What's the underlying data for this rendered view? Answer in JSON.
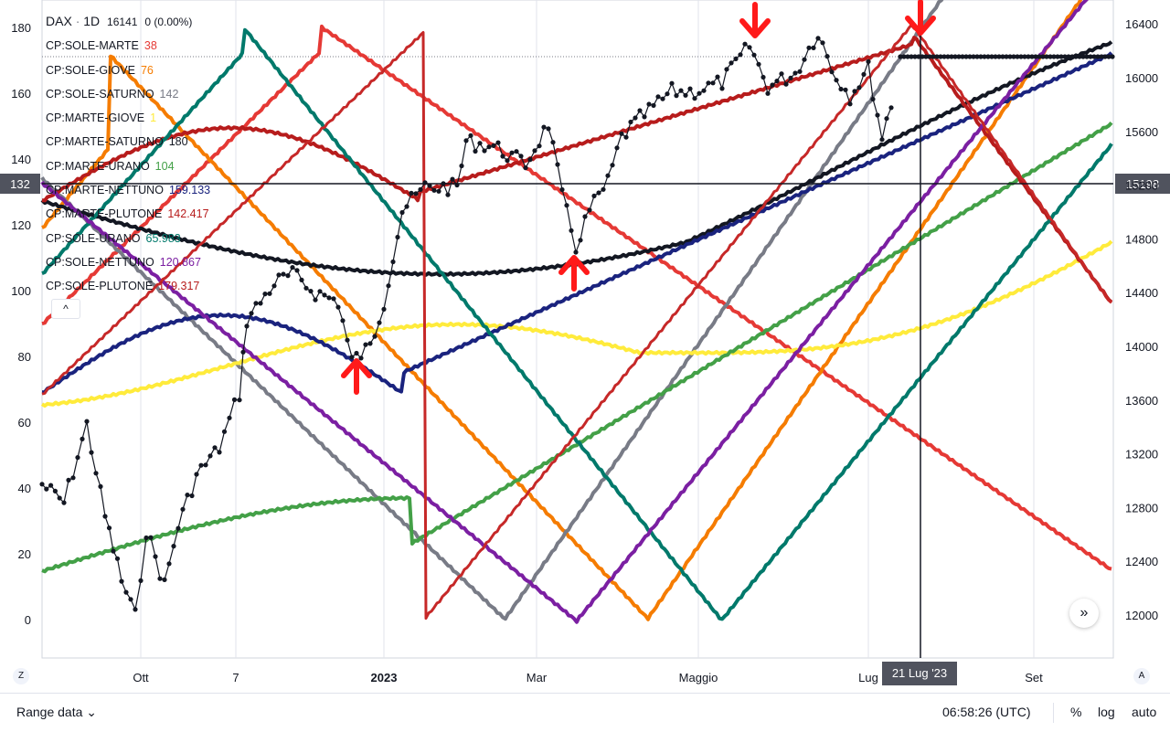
{
  "header": {
    "symbol": "DAX",
    "interval": "1D",
    "last_value": "16141",
    "change": "0 (0.00%)"
  },
  "legend": [
    {
      "name": "CP:SOLE-MARTE",
      "value": "38",
      "color": "#e53935"
    },
    {
      "name": "CP:SOLE-GIOVE",
      "value": "76",
      "color": "#f57c00"
    },
    {
      "name": "CP:SOLE-SATURNO",
      "value": "142",
      "color": "#787b86"
    },
    {
      "name": "CP:MARTE-GIOVE",
      "value": "1",
      "color": "#ffeb3b"
    },
    {
      "name": "CP:MARTE-SATURNO",
      "value": "180",
      "color": "#131722"
    },
    {
      "name": "CP:MARTE-URANO",
      "value": "104",
      "color": "#43a047"
    },
    {
      "name": "CP:MARTE-NETTUNO",
      "value": "159.133",
      "color": "#1a237e"
    },
    {
      "name": "CP:MARTE-PLUTONE",
      "value": "142.417",
      "color": "#b71c1c"
    },
    {
      "name": "CP:SOLE-URANO",
      "value": "65.983",
      "color": "#00796b"
    },
    {
      "name": "CP:SOLE-NETTUNO",
      "value": "120.867",
      "color": "#7b1fa2"
    },
    {
      "name": "CP:SOLE-PLUTONE",
      "value": "179.317",
      "color": "#b71c1c"
    }
  ],
  "collapse_label": "^",
  "bottom_bar": {
    "range_label": "Range data ⌄",
    "clock": "06:58:26 (UTC)",
    "percent": "%",
    "log": "log",
    "auto": "auto"
  },
  "corner_left": "Z",
  "corner_right": "A",
  "scroll_icon": "»",
  "crosshair": {
    "date_label": "21 Lug '23",
    "left_value": "132",
    "right_value": "15198"
  },
  "chart_data": {
    "type": "line",
    "left_axis": {
      "ticks": [
        0,
        20,
        40,
        60,
        80,
        100,
        120,
        140,
        160,
        180
      ]
    },
    "right_axis": {
      "ticks": [
        12000,
        12400,
        12800,
        13200,
        13600,
        14000,
        14400,
        14800,
        15200,
        15600,
        16000,
        16400
      ]
    },
    "x_ticks": [
      "Ott",
      "7",
      "2023",
      "Mar",
      "Maggio",
      "Lug",
      "Set"
    ],
    "price_series_name": "DAX",
    "signals": [
      {
        "type": "up",
        "date": "2022-12-07"
      },
      {
        "type": "up",
        "date": "2023-03-14"
      },
      {
        "type": "down",
        "date": "2023-05-29"
      },
      {
        "type": "down",
        "date": "2023-07-21"
      }
    ]
  }
}
